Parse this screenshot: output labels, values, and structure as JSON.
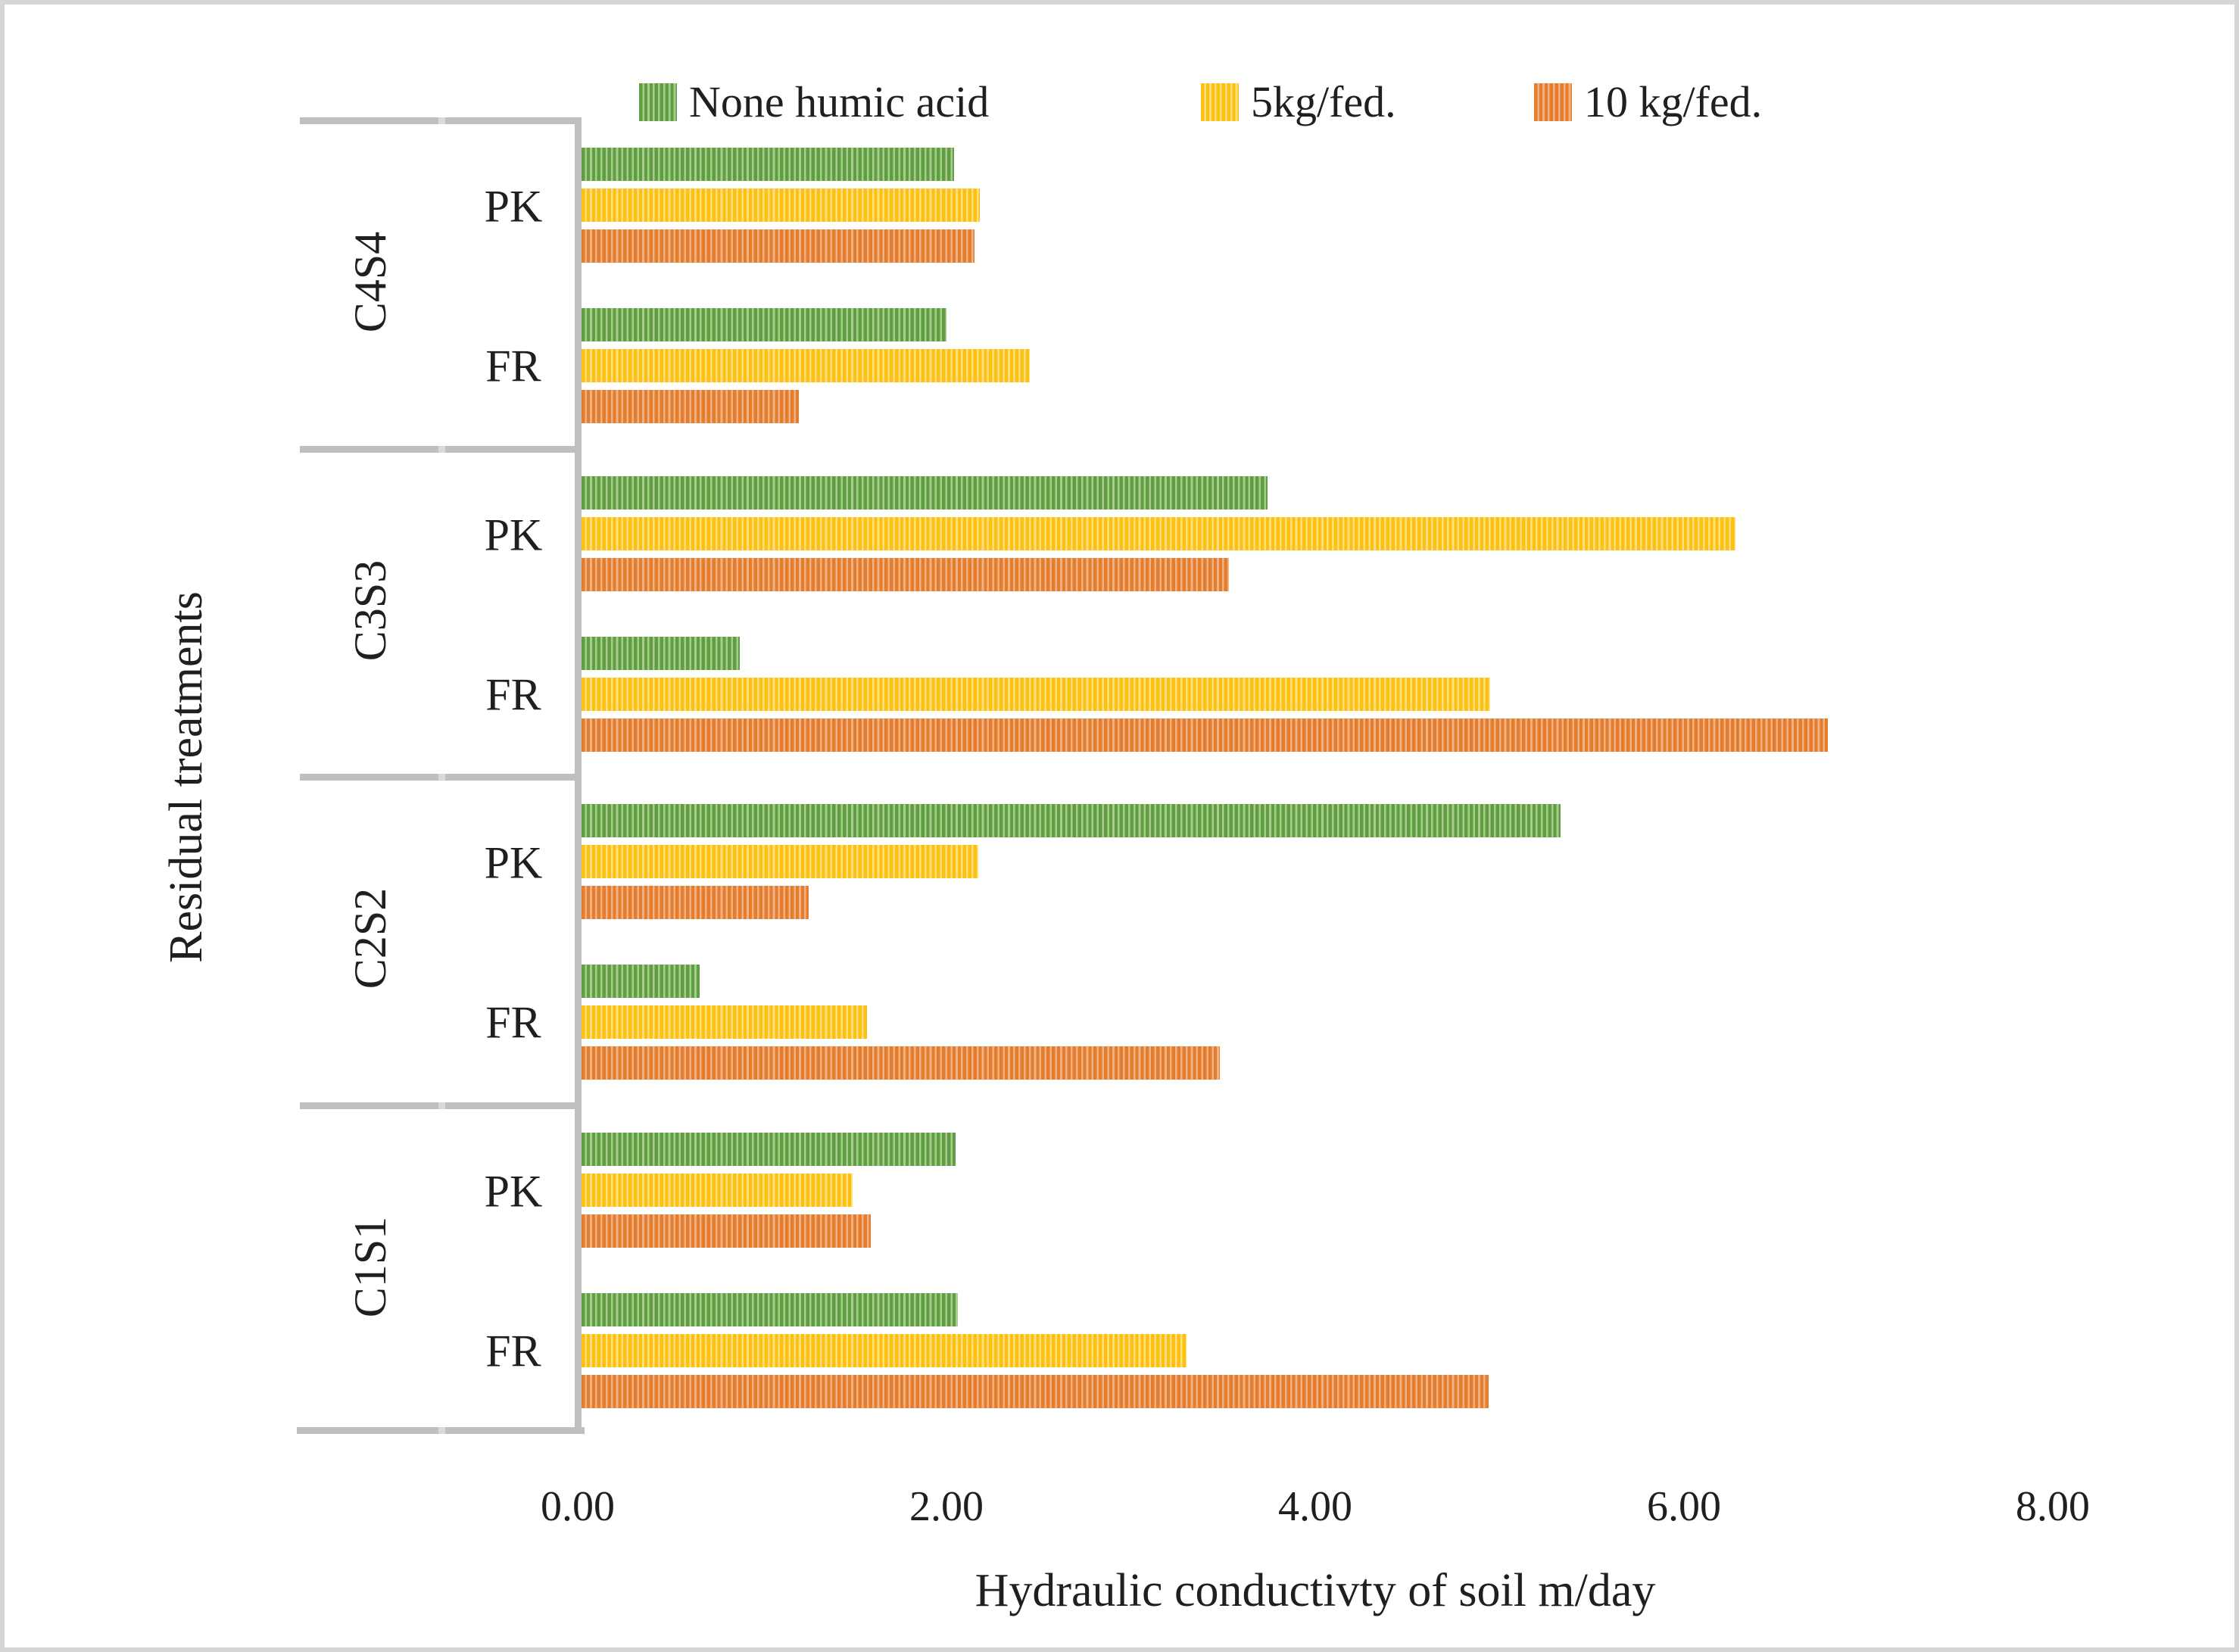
{
  "chart_data": {
    "type": "bar",
    "orientation": "horizontal",
    "title": "",
    "xlabel": "Hydraulic conductivty of soil m/day",
    "ylabel": "Residual treatments",
    "xlim": [
      0,
      8
    ],
    "xticks": [
      "0.00",
      "2.00",
      "4.00",
      "6.00",
      "8.00"
    ],
    "grid": false,
    "legend_position": "top",
    "pattern_fill": "thin-vertical-stripes",
    "series": [
      {
        "name": "None humic acid",
        "color": "#5F9E41",
        "color_light": "#A7CC8D"
      },
      {
        "name": "5kg/fed.",
        "color": "#FDC010",
        "color_light": "#FEDF7E"
      },
      {
        "name": "10 kg/fed.",
        "color": "#E47E2E",
        "color_light": "#F2B183"
      }
    ],
    "groups": [
      {
        "label": "C4S4",
        "subgroups": [
          {
            "label": "PK",
            "values": [
              2.02,
              2.16,
              2.13
            ]
          },
          {
            "label": "FR",
            "values": [
              1.98,
              2.43,
              1.18
            ]
          }
        ]
      },
      {
        "label": "C3S3",
        "subgroups": [
          {
            "label": "PK",
            "values": [
              3.72,
              6.26,
              3.51
            ]
          },
          {
            "label": "FR",
            "values": [
              0.86,
              4.93,
              6.76
            ]
          }
        ]
      },
      {
        "label": "C2S2",
        "subgroups": [
          {
            "label": "PK",
            "values": [
              5.31,
              2.15,
              1.23
            ]
          },
          {
            "label": "FR",
            "values": [
              0.64,
              1.55,
              3.46
            ]
          }
        ]
      },
      {
        "label": "C1S1",
        "subgroups": [
          {
            "label": "PK",
            "values": [
              2.03,
              1.47,
              1.57
            ]
          },
          {
            "label": "FR",
            "values": [
              2.04,
              3.28,
              4.92
            ]
          }
        ]
      }
    ]
  },
  "colors": {
    "axis_line": "#BFBFBF",
    "text": "#1F1F1F",
    "frame": "#D6D6D6",
    "background": "#FFFFFF"
  }
}
